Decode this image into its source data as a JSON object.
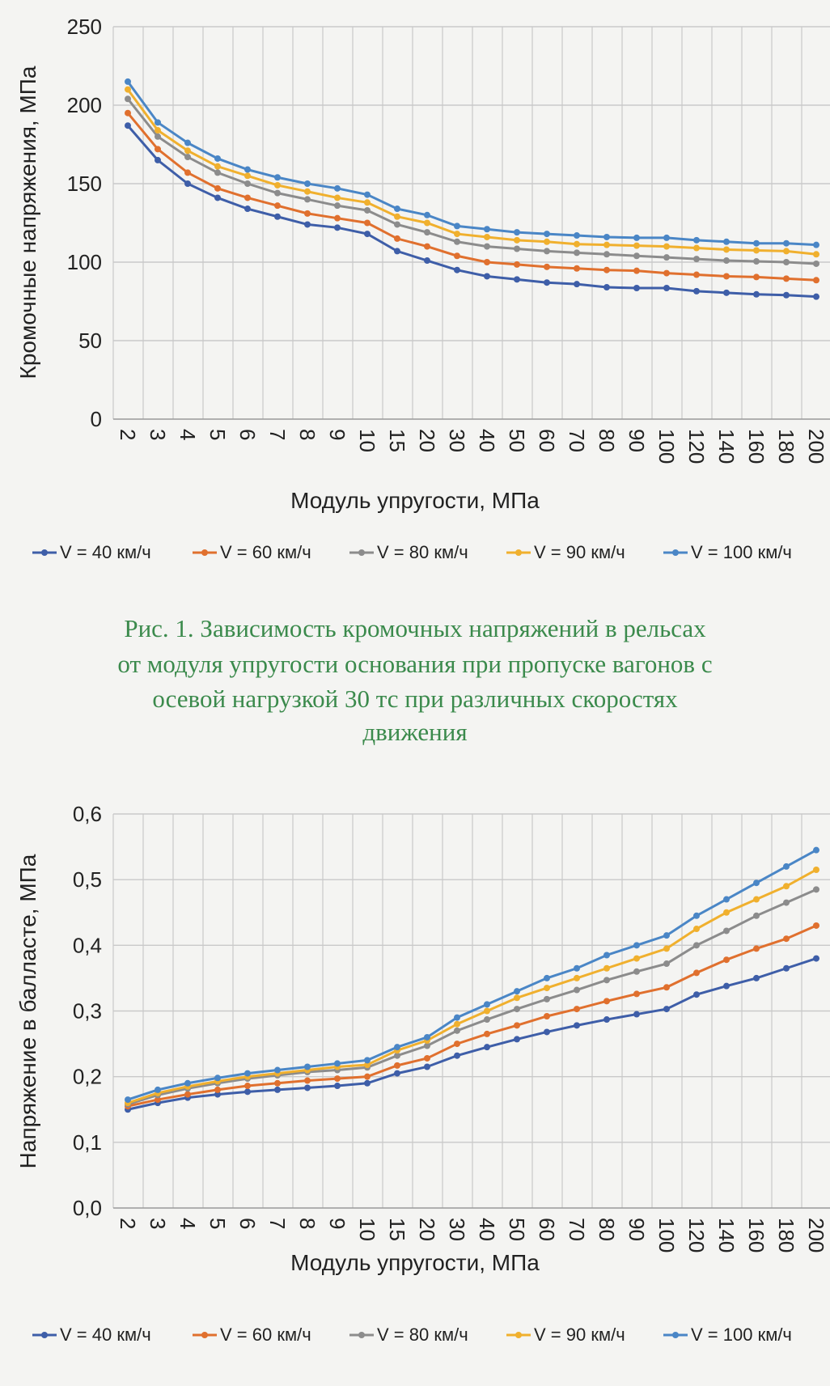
{
  "caption": [
    "Рис. 1. Зависимость кромочных напряжений в рельсах",
    "от модуля упругости основания при пропуске вагонов с",
    "осевой нагрузкой 30 тс при различных скоростях",
    "движения"
  ],
  "chart_data": [
    {
      "type": "line",
      "title": "",
      "xlabel": "Модуль упругости, МПа",
      "ylabel": "Кромочные напряжения, МПа",
      "ylim": [
        0,
        250
      ],
      "yticks": [
        "0",
        "50",
        "100",
        "150",
        "200",
        "250"
      ],
      "ytick_values": [
        0,
        50,
        100,
        150,
        200,
        250
      ],
      "grid": true,
      "legend_position": "bottom",
      "categories": [
        "2",
        "3",
        "4",
        "5",
        "6",
        "7",
        "8",
        "9",
        "10",
        "15",
        "20",
        "30",
        "40",
        "50",
        "60",
        "70",
        "80",
        "90",
        "100",
        "120",
        "140",
        "160",
        "180",
        "200"
      ],
      "series": [
        {
          "name": "V = 40 км/ч",
          "color": "#3e5ea8",
          "values": [
            187,
            165,
            150,
            141,
            134,
            129,
            124,
            122,
            118,
            107,
            101,
            95,
            91,
            89,
            87,
            86,
            84,
            83.5,
            83.5,
            81.5,
            80.5,
            79.5,
            79,
            78
          ]
        },
        {
          "name": "V = 60 км/ч",
          "color": "#e0702e",
          "values": [
            195,
            172,
            157,
            147,
            141,
            136,
            131,
            128,
            125,
            115,
            110,
            104,
            100,
            98.5,
            97,
            96,
            95,
            94.5,
            93,
            92,
            91,
            90.5,
            89.5,
            88.5
          ]
        },
        {
          "name": "V = 80 км/ч",
          "color": "#8c8c8c",
          "values": [
            204,
            180,
            167,
            157,
            150,
            144,
            140,
            136,
            133,
            124,
            119,
            113,
            110,
            108.5,
            107,
            106,
            105,
            104,
            103,
            102,
            101,
            100.5,
            100,
            99
          ]
        },
        {
          "name": "V = 90 км/ч",
          "color": "#f0b02e",
          "values": [
            210,
            184,
            171,
            161,
            155,
            149,
            145,
            141,
            138,
            129,
            125,
            118,
            116,
            114,
            113,
            111.5,
            111,
            110.5,
            110,
            109,
            108,
            107.5,
            107,
            105
          ]
        },
        {
          "name": "V = 100 км/ч",
          "color": "#4a86c6",
          "values": [
            215,
            189,
            176,
            166,
            159,
            154,
            150,
            147,
            143,
            134,
            130,
            123,
            121,
            119,
            118,
            117,
            116,
            115.5,
            115.5,
            114,
            113,
            112,
            112,
            111
          ]
        }
      ]
    },
    {
      "type": "line",
      "title": "",
      "xlabel": "Модуль упругости, МПа",
      "ylabel": "Напряжение в балласте, МПа",
      "ylim": [
        0,
        0.6
      ],
      "yticks": [
        "0,0",
        "0,1",
        "0,2",
        "0,3",
        "0,4",
        "0,5",
        "0,6"
      ],
      "ytick_values": [
        0,
        0.1,
        0.2,
        0.3,
        0.4,
        0.5,
        0.6
      ],
      "grid": true,
      "legend_position": "bottom",
      "categories": [
        "2",
        "3",
        "4",
        "5",
        "6",
        "7",
        "8",
        "9",
        "10",
        "15",
        "20",
        "30",
        "40",
        "50",
        "60",
        "70",
        "80",
        "90",
        "100",
        "120",
        "140",
        "160",
        "180",
        "200"
      ],
      "series": [
        {
          "name": "V = 40 км/ч",
          "color": "#3e5ea8",
          "values": [
            0.15,
            0.16,
            0.168,
            0.173,
            0.177,
            0.18,
            0.183,
            0.186,
            0.19,
            0.205,
            0.215,
            0.232,
            0.245,
            0.257,
            0.268,
            0.278,
            0.287,
            0.295,
            0.303,
            0.325,
            0.338,
            0.35,
            0.365,
            0.38
          ]
        },
        {
          "name": "V = 60 км/ч",
          "color": "#e0702e",
          "values": [
            0.155,
            0.165,
            0.173,
            0.18,
            0.186,
            0.19,
            0.194,
            0.197,
            0.2,
            0.217,
            0.228,
            0.25,
            0.265,
            0.278,
            0.292,
            0.303,
            0.315,
            0.326,
            0.336,
            0.358,
            0.378,
            0.395,
            0.41,
            0.43
          ]
        },
        {
          "name": "V = 80 км/ч",
          "color": "#8c8c8c",
          "values": [
            0.158,
            0.172,
            0.182,
            0.19,
            0.197,
            0.202,
            0.207,
            0.21,
            0.214,
            0.232,
            0.247,
            0.27,
            0.287,
            0.303,
            0.318,
            0.332,
            0.347,
            0.36,
            0.372,
            0.4,
            0.422,
            0.445,
            0.465,
            0.485
          ]
        },
        {
          "name": "V = 90 км/ч",
          "color": "#f0b02e",
          "values": [
            0.16,
            0.175,
            0.185,
            0.193,
            0.2,
            0.205,
            0.21,
            0.215,
            0.218,
            0.24,
            0.255,
            0.28,
            0.3,
            0.32,
            0.335,
            0.35,
            0.365,
            0.38,
            0.395,
            0.425,
            0.45,
            0.47,
            0.49,
            0.515
          ]
        },
        {
          "name": "V = 100 км/ч",
          "color": "#4a86c6",
          "values": [
            0.165,
            0.18,
            0.19,
            0.198,
            0.205,
            0.21,
            0.215,
            0.22,
            0.225,
            0.245,
            0.26,
            0.29,
            0.31,
            0.33,
            0.35,
            0.365,
            0.385,
            0.4,
            0.415,
            0.445,
            0.47,
            0.495,
            0.52,
            0.545
          ]
        }
      ]
    }
  ]
}
